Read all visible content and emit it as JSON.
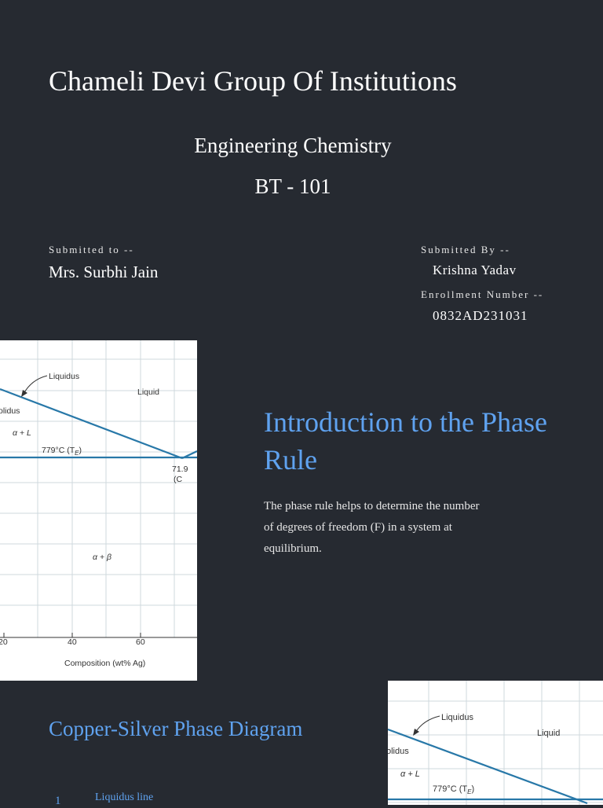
{
  "header": {
    "institution": "Chameli Devi Group Of Institutions",
    "course": "Engineering Chemistry",
    "code": "BT - 101"
  },
  "submission": {
    "to_label": "Submitted to --",
    "to_name": "Mrs. Surbhi Jain",
    "by_label": "Submitted By --",
    "by_name": "Krishna Yadav",
    "enrollment_label": "Enrollment Number --",
    "enrollment_value": "0832AD231031"
  },
  "diagram": {
    "liquidus": "Liquidus",
    "solidus_partial": "olidus",
    "liquid": "Liquid",
    "alpha_l": "α + L",
    "eutectic_temp": "779°C (T",
    "eutectic_sub": "E",
    "eutectic_close": ")",
    "eutectic_comp": "71.9",
    "eutectic_comp_sub": "(C",
    "alpha_beta": "α + β",
    "x_ticks": [
      "20",
      "40",
      "60"
    ],
    "x_label": "Composition (wt% Ag)"
  },
  "intro": {
    "title": "Introduction to the Phase Rule",
    "body": "The phase rule helps to determine the number of degrees of freedom (F) in a system at equilibrium."
  },
  "copper_silver": {
    "title": "Copper-Silver Phase Diagram",
    "list_number": "1",
    "list_item": "Liquidus line"
  },
  "colors": {
    "background": "#262a31",
    "heading": "#5fa2ef",
    "diagram_line": "#2878a8",
    "grid": "#cfd8de"
  }
}
